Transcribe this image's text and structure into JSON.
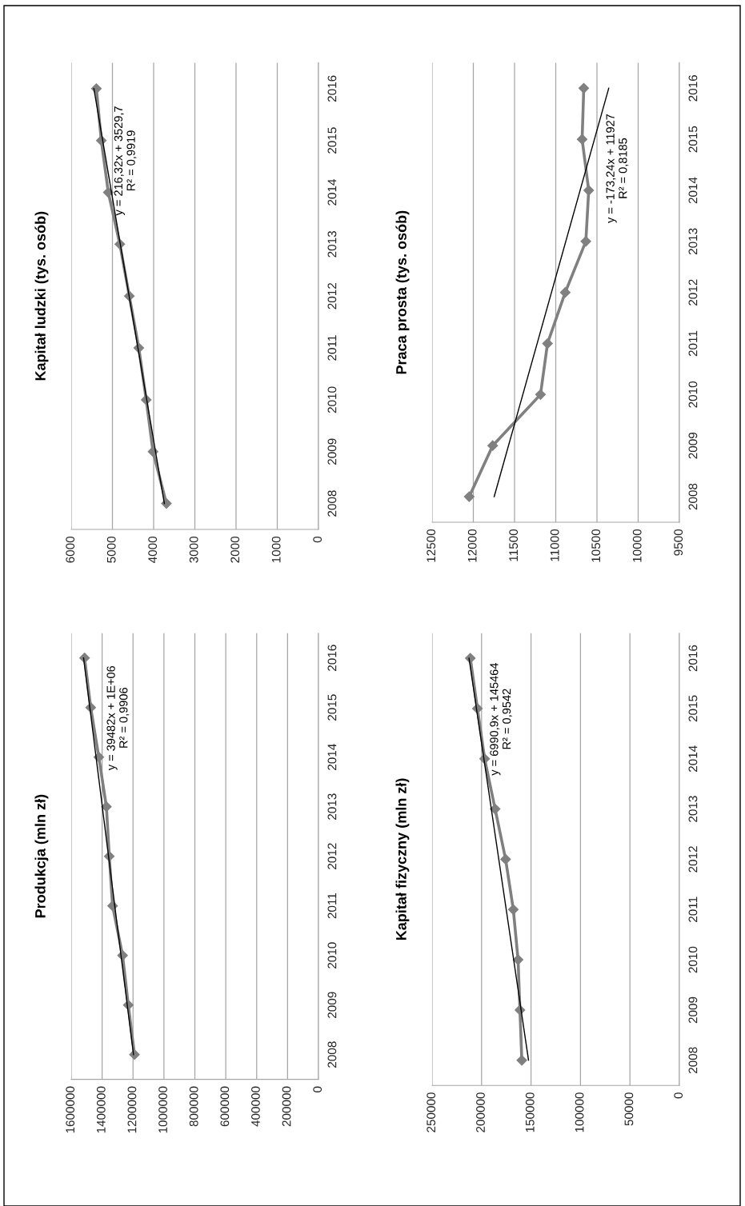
{
  "chart_data": [
    {
      "type": "line",
      "title": "Produkcja (mln zł)",
      "xlim": [
        1600000,
        0
      ],
      "xticks": [
        0,
        200000,
        400000,
        600000,
        800000,
        1000000,
        1200000,
        1400000,
        1600000
      ],
      "ylim": [
        2007.5,
        2016.5
      ],
      "yticks": [
        2008,
        2009,
        2010,
        2011,
        2012,
        2013,
        2014,
        2015,
        2016
      ],
      "grid": "x",
      "series": [
        {
          "color": "#808080",
          "marker": "diamond",
          "x": [
            1190800,
            1230800,
            1267700,
            1332300,
            1353800,
            1372300,
            1421500,
            1473800,
            1513800
          ],
          "values": [
            2008,
            2009,
            2010,
            2011,
            2012,
            2013,
            2014,
            2015,
            2016
          ]
        },
        {
          "type": "line",
          "color": "#000000",
          "x": [
            1197000,
            1520000
          ],
          "values": [
            2008,
            2016
          ]
        }
      ],
      "annotations": [
        "y = 39482x + 1E+06\nR² = 0,9906"
      ]
    },
    {
      "type": "line",
      "title": "Kapitał ludzki (tys. osób)",
      "xlim": [
        6000,
        0
      ],
      "xticks": [
        0,
        1000,
        2000,
        3000,
        4000,
        5000,
        6000
      ],
      "ylim": [
        2007.5,
        2016.5
      ],
      "yticks": [
        2008,
        2009,
        2010,
        2011,
        2012,
        2013,
        2014,
        2015,
        2016
      ],
      "grid": "x",
      "series": [
        {
          "color": "#808080",
          "marker": "diamond",
          "x": [
            3690,
            4015,
            4180,
            4360,
            4590,
            4820,
            5100,
            5270,
            5390
          ],
          "values": [
            2008,
            2009,
            2010,
            2011,
            2012,
            2013,
            2014,
            2015,
            2016
          ]
        },
        {
          "type": "line",
          "color": "#000000",
          "x": [
            3740,
            5450
          ],
          "values": [
            2008,
            2016
          ]
        }
      ],
      "annotations": [
        "y = 216,32x + 3529,7\nR² = 0,9919"
      ]
    },
    {
      "type": "line",
      "title": "Kapitał fizyczny (mln zł)",
      "xlim": [
        250000,
        0
      ],
      "xticks": [
        0,
        50000,
        100000,
        150000,
        200000,
        250000
      ],
      "ylim": [
        2007.5,
        2016.5
      ],
      "yticks": [
        2008,
        2009,
        2010,
        2011,
        2012,
        2013,
        2014,
        2015,
        2016
      ],
      "grid": "x",
      "series": [
        {
          "color": "#808080",
          "marker": "diamond",
          "x": [
            159300,
            161200,
            163100,
            167900,
            175700,
            186300,
            196900,
            204200,
            211400
          ],
          "values": [
            2008,
            2009,
            2010,
            2011,
            2012,
            2013,
            2014,
            2015,
            2016
          ]
        },
        {
          "type": "line",
          "color": "#000000",
          "x": [
            152500,
            212700
          ],
          "values": [
            2008,
            2016
          ]
        }
      ],
      "annotations": [
        "y = 6990,9x + 145464\nR² = 0,9542"
      ]
    },
    {
      "type": "line",
      "title": "Praca prosta (tys. osób)",
      "xlim": [
        12500,
        9500
      ],
      "xticks": [
        9500,
        10000,
        10500,
        11000,
        11500,
        12000,
        12500
      ],
      "ylim": [
        2007.5,
        2016.5
      ],
      "yticks": [
        2008,
        2009,
        2010,
        2011,
        2012,
        2013,
        2014,
        2015,
        2016
      ],
      "grid": "x",
      "series": [
        {
          "color": "#808080",
          "marker": "diamond",
          "x": [
            12050,
            11765,
            11185,
            11100,
            10885,
            10635,
            10600,
            10680,
            10660
          ],
          "values": [
            2008,
            2009,
            2010,
            2011,
            2012,
            2013,
            2014,
            2015,
            2016
          ]
        },
        {
          "type": "line",
          "color": "#000000",
          "x": [
            11747,
            10357
          ],
          "values": [
            2008,
            2016
          ]
        }
      ],
      "annotations": [
        "y = -173,24x + 11927\nR² = 0,8185"
      ]
    }
  ]
}
